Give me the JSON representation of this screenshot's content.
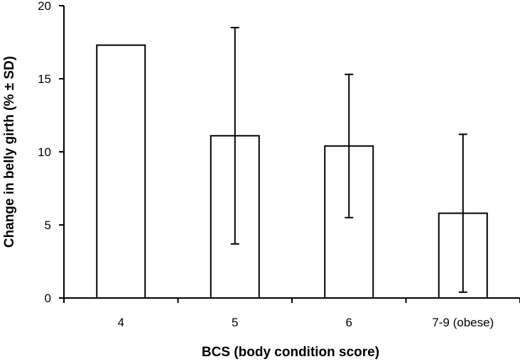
{
  "chart_data": {
    "type": "bar",
    "categories": [
      "4",
      "5",
      "6",
      "7-9 (obese)"
    ],
    "values": [
      17.3,
      11.1,
      10.4,
      5.8
    ],
    "error": [
      null,
      7.4,
      4.9,
      5.4
    ],
    "title": "",
    "xlabel": "BCS (body condition score)",
    "ylabel": "Change in  belly girth (% ± SD)",
    "ylim": [
      0,
      20
    ],
    "yticks": [
      0,
      5,
      10,
      15,
      20
    ],
    "grid": false,
    "legend": "none"
  },
  "colors": {
    "bar_fill": "#ffffff",
    "bar_stroke": "#000000",
    "axis": "#000000"
  }
}
